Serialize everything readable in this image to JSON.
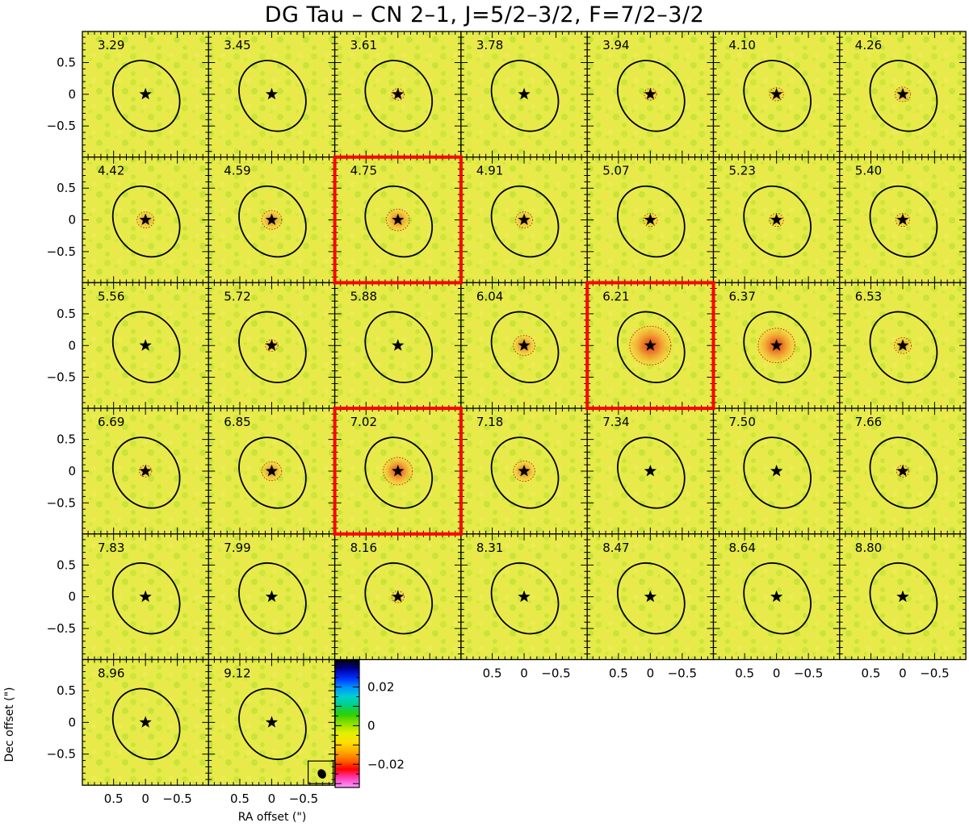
{
  "title": "DG Tau – CN 2–1, J=5/2–3/2, F=7/2–3/2",
  "axes": {
    "xlabel": "RA offset (\")",
    "ylabel": "Dec offset (\")",
    "xticks": [
      "0.5",
      "0",
      "−0.5"
    ],
    "yticks": [
      "0.5",
      "0",
      "−0.5"
    ]
  },
  "channels": [
    {
      "v": "3.29",
      "intensity": 0.0,
      "highlight": false
    },
    {
      "v": "3.45",
      "intensity": 0.0,
      "highlight": false
    },
    {
      "v": "3.61",
      "intensity": 0.05,
      "highlight": false
    },
    {
      "v": "3.78",
      "intensity": 0.0,
      "highlight": false
    },
    {
      "v": "3.94",
      "intensity": 0.05,
      "highlight": false
    },
    {
      "v": "4.10",
      "intensity": 0.1,
      "highlight": false
    },
    {
      "v": "4.26",
      "intensity": 0.15,
      "highlight": false
    },
    {
      "v": "4.42",
      "intensity": 0.2,
      "highlight": false
    },
    {
      "v": "4.59",
      "intensity": 0.3,
      "highlight": false
    },
    {
      "v": "4.75",
      "intensity": 0.4,
      "highlight": true
    },
    {
      "v": "4.91",
      "intensity": 0.2,
      "highlight": false
    },
    {
      "v": "5.07",
      "intensity": 0.1,
      "highlight": false
    },
    {
      "v": "5.23",
      "intensity": 0.1,
      "highlight": false
    },
    {
      "v": "5.40",
      "intensity": 0.1,
      "highlight": false
    },
    {
      "v": "5.56",
      "intensity": 0.0,
      "highlight": false
    },
    {
      "v": "5.72",
      "intensity": 0.05,
      "highlight": false
    },
    {
      "v": "5.88",
      "intensity": 0.0,
      "highlight": false
    },
    {
      "v": "6.04",
      "intensity": 0.35,
      "highlight": false
    },
    {
      "v": "6.21",
      "intensity": 1.0,
      "highlight": true
    },
    {
      "v": "6.37",
      "intensity": 0.85,
      "highlight": false
    },
    {
      "v": "6.53",
      "intensity": 0.2,
      "highlight": false
    },
    {
      "v": "6.69",
      "intensity": 0.05,
      "highlight": false
    },
    {
      "v": "6.85",
      "intensity": 0.3,
      "highlight": false
    },
    {
      "v": "7.02",
      "intensity": 0.6,
      "highlight": true
    },
    {
      "v": "7.18",
      "intensity": 0.35,
      "highlight": false
    },
    {
      "v": "7.34",
      "intensity": 0.0,
      "highlight": false
    },
    {
      "v": "7.50",
      "intensity": 0.0,
      "highlight": false
    },
    {
      "v": "7.66",
      "intensity": 0.05,
      "highlight": false
    },
    {
      "v": "7.83",
      "intensity": 0.0,
      "highlight": false
    },
    {
      "v": "7.99",
      "intensity": 0.0,
      "highlight": false
    },
    {
      "v": "8.16",
      "intensity": 0.05,
      "highlight": false
    },
    {
      "v": "8.31",
      "intensity": 0.0,
      "highlight": false
    },
    {
      "v": "8.47",
      "intensity": 0.0,
      "highlight": false
    },
    {
      "v": "8.64",
      "intensity": 0.0,
      "highlight": false
    },
    {
      "v": "8.80",
      "intensity": 0.0,
      "highlight": false
    },
    {
      "v": "8.96",
      "intensity": 0.0,
      "highlight": false
    },
    {
      "v": "9.12",
      "intensity": 0.0,
      "highlight": false
    }
  ],
  "colorbar": {
    "ticks": [
      "0.02",
      "0",
      "−0.02"
    ],
    "tick_values": [
      0.02,
      0,
      -0.02
    ],
    "range": [
      -0.032,
      0.034
    ],
    "colors": [
      "#ff9cff",
      "#ff40c0",
      "#ff0000",
      "#ff6a00",
      "#ffb000",
      "#ffe000",
      "#e0f000",
      "#90e000",
      "#30d000",
      "#00d080",
      "#00d0d0",
      "#0090ff",
      "#0030ff",
      "#0000a0",
      "#000000"
    ]
  },
  "colors": {
    "map_background": "#e4ea46",
    "highlight_frame": "#ff0000",
    "emission": "#f07028"
  }
}
